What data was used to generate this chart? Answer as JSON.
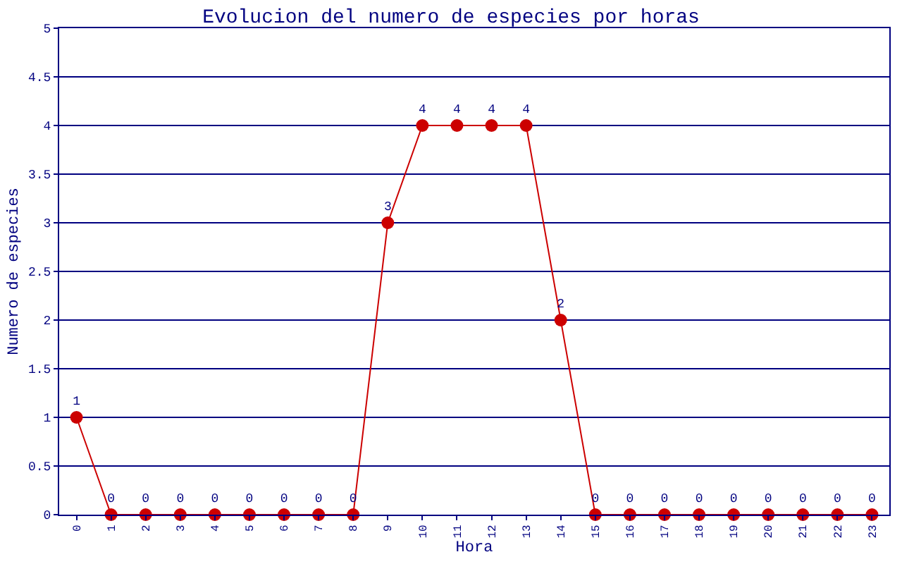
{
  "chart_data": {
    "type": "line",
    "title": "Evolucion del numero de especies por horas",
    "xlabel": "Hora",
    "ylabel": "Numero de especies",
    "categories": [
      "0",
      "1",
      "2",
      "3",
      "4",
      "5",
      "6",
      "7",
      "8",
      "9",
      "10",
      "11",
      "12",
      "13",
      "14",
      "15",
      "16",
      "17",
      "18",
      "19",
      "20",
      "21",
      "22",
      "23"
    ],
    "series": [
      {
        "color": "#cc0000",
        "values": [
          1,
          0,
          0,
          0,
          0,
          0,
          0,
          0,
          0,
          3,
          4,
          4,
          4,
          4,
          2,
          0,
          0,
          0,
          0,
          0,
          0,
          0,
          0,
          0
        ]
      }
    ],
    "ylim": [
      0,
      5
    ],
    "yticks": [
      0,
      0.5,
      1,
      1.5,
      2,
      2.5,
      3,
      3.5,
      4,
      4.5,
      5
    ],
    "grid": "y",
    "marker": "circle",
    "line_style": "solid",
    "data_labels": true
  }
}
